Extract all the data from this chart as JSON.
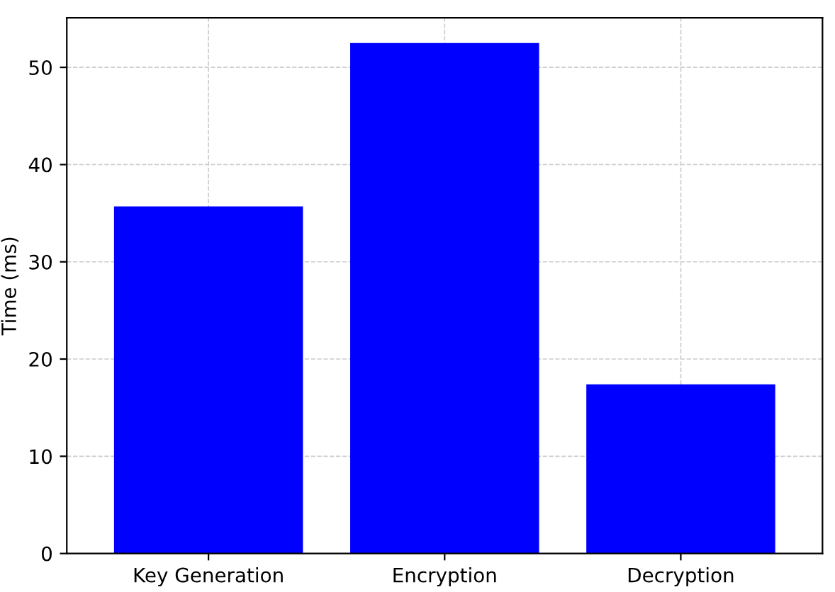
{
  "chart_data": {
    "type": "bar",
    "ylabel": "Time (ms)",
    "categories": [
      "Key Generation",
      "Encryption",
      "Decryption"
    ],
    "values": [
      35.7,
      52.5,
      17.4
    ],
    "color": "#0000ff",
    "ylim": [
      0,
      55.1
    ],
    "yticks": [
      0,
      10,
      20,
      30,
      40,
      50
    ],
    "grid": true
  }
}
